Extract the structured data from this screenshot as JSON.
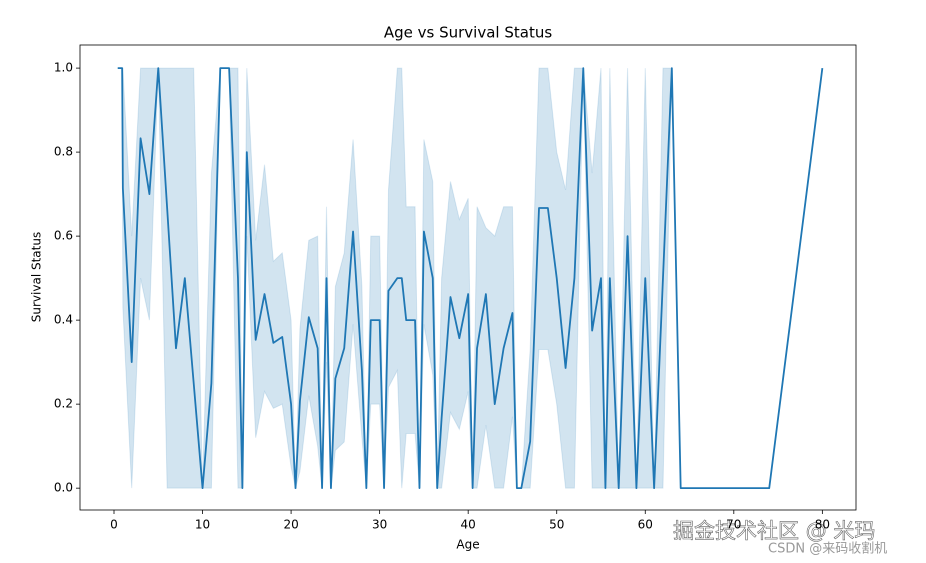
{
  "chart_data": {
    "type": "line",
    "title": "Age vs Survival Status",
    "x_label": "Age",
    "y_label": "Survival Status",
    "x": [
      0.42,
      0.67,
      0.75,
      0.83,
      0.92,
      1,
      2,
      3,
      4,
      5,
      6,
      7,
      8,
      9,
      10,
      11,
      12,
      13,
      14,
      14.5,
      15,
      16,
      17,
      18,
      19,
      20,
      20.5,
      21,
      22,
      23,
      23.5,
      24,
      24.5,
      25,
      26,
      27,
      28,
      28.5,
      29,
      30,
      30.5,
      31,
      32,
      32.5,
      33,
      34,
      34.5,
      35,
      36,
      36.5,
      37,
      38,
      39,
      40,
      40.5,
      41,
      42,
      43,
      44,
      45,
      45.5,
      46,
      47,
      48,
      49,
      50,
      51,
      52,
      53,
      54,
      55,
      55.5,
      56,
      57,
      58,
      59,
      60,
      61,
      62,
      63,
      64,
      65,
      66,
      70,
      70.5,
      71,
      74,
      80
    ],
    "series": [
      {
        "name": "Survival Status",
        "color": "#1f77b4",
        "values": [
          1,
          1,
          1,
          1,
          1,
          0.714,
          0.3,
          0.833,
          0.7,
          1,
          0.667,
          0.333,
          0.5,
          0.25,
          0,
          0.25,
          1,
          1,
          0.5,
          0,
          0.8,
          0.353,
          0.462,
          0.346,
          0.36,
          0.2,
          0,
          0.208,
          0.407,
          0.333,
          0,
          0.5,
          0,
          0.261,
          0.333,
          0.611,
          0.28,
          0,
          0.4,
          0.4,
          0,
          0.47,
          0.5,
          0.5,
          0.4,
          0.4,
          0,
          0.611,
          0.5,
          0,
          0.167,
          0.455,
          0.357,
          0.462,
          0,
          0.333,
          0.462,
          0.2,
          0.333,
          0.417,
          0,
          0,
          0.111,
          0.667,
          0.667,
          0.5,
          0.286,
          0.5,
          1,
          0.375,
          0.5,
          0,
          0.5,
          0,
          0.6,
          0,
          0.5,
          0,
          0.5,
          1,
          0,
          0,
          0,
          0,
          0,
          0,
          0,
          1
        ],
        "ci_lower": [
          1,
          1,
          1,
          1,
          1,
          0.43,
          0,
          0.5,
          0.4,
          1,
          0,
          0,
          0,
          0,
          0,
          0,
          1,
          1,
          0,
          0,
          0.6,
          0.12,
          0.23,
          0.19,
          0.2,
          0.05,
          0,
          0.04,
          0.22,
          0.1,
          0,
          0.3,
          0,
          0.09,
          0.11,
          0.39,
          0.12,
          0,
          0.2,
          0.2,
          0,
          0.24,
          0.28,
          0,
          0.13,
          0.13,
          0,
          0.39,
          0.27,
          0,
          0,
          0.18,
          0.14,
          0.23,
          0,
          0,
          0.15,
          0,
          0,
          0.17,
          0,
          0,
          0,
          0.33,
          0.33,
          0.2,
          0,
          0,
          1,
          0,
          0,
          0,
          0,
          0,
          0,
          0,
          0,
          0,
          0,
          1,
          0,
          0,
          0,
          0,
          0,
          0,
          0,
          1
        ],
        "ci_upper": [
          1,
          1,
          1,
          1,
          1,
          1,
          0.6,
          1,
          1,
          1,
          1,
          1,
          1,
          1,
          0,
          0.75,
          1,
          1,
          1,
          0,
          1,
          0.59,
          0.77,
          0.54,
          0.56,
          0.4,
          0,
          0.38,
          0.59,
          0.6,
          0,
          0.67,
          0,
          0.48,
          0.56,
          0.83,
          0.48,
          0,
          0.6,
          0.6,
          0,
          0.71,
          1,
          1,
          0.67,
          0.67,
          0,
          0.83,
          0.73,
          0,
          0.5,
          0.73,
          0.64,
          0.69,
          0,
          0.67,
          0.62,
          0.6,
          0.67,
          0.67,
          0,
          0,
          0.33,
          1,
          1,
          0.8,
          0.71,
          1,
          1,
          0.75,
          1,
          0,
          1,
          0,
          1,
          0,
          1,
          0,
          1,
          1,
          0,
          0,
          0,
          0,
          0,
          0,
          0,
          1
        ]
      }
    ],
    "xlim": [
      -3.84,
      83.8
    ],
    "ylim": [
      -0.052,
      1.055
    ],
    "xticks": [
      0,
      10,
      20,
      30,
      40,
      50,
      60,
      70,
      80
    ],
    "yticks": [
      {
        "value": 0,
        "label": "0.0"
      },
      {
        "value": 0.2,
        "label": "0.2"
      },
      {
        "value": 0.4,
        "label": "0.4"
      },
      {
        "value": 0.6,
        "label": "0.6"
      },
      {
        "value": 0.8,
        "label": "0.8"
      },
      {
        "value": 1,
        "label": "1.0"
      }
    ]
  },
  "watermarks": [
    "掘金技术社区 @ 米玛",
    "CSDN @来码收割机"
  ]
}
